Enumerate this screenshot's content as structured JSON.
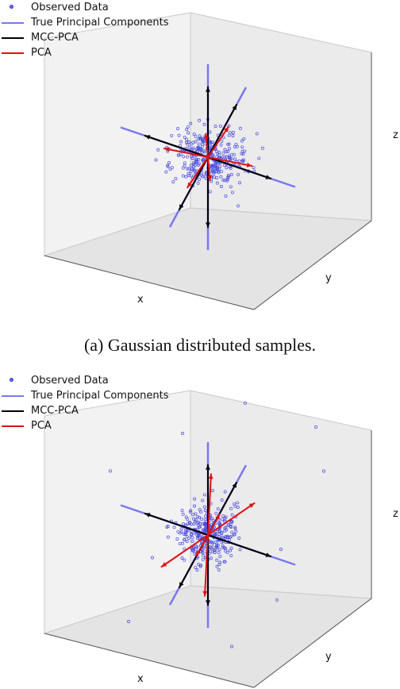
{
  "chart_data": [
    {
      "type": "scatter",
      "view": "3d",
      "caption": "(a) Gaussian distributed samples.",
      "xlabel": "x",
      "ylabel": "y",
      "zlabel": "z",
      "grid": false,
      "legend_placement": "top-left",
      "legend": [
        {
          "label": "Observed Data",
          "kind": "marker",
          "color": "#3333cc"
        },
        {
          "label": "True Principal Components",
          "kind": "line",
          "color": "#7878f0"
        },
        {
          "label": "MCC-PCA",
          "kind": "line",
          "color": "#000000"
        },
        {
          "label": "PCA",
          "kind": "line",
          "color": "#e01010"
        }
      ],
      "series": [
        {
          "name": "Observed Data",
          "cluster_spread": [
            3.0,
            2.0,
            1.0
          ],
          "outliers": []
        },
        {
          "name": "True Principal Components",
          "lines": [
            [
              -5,
              0,
              0,
              5,
              0,
              0
            ],
            [
              0,
              -4,
              0,
              0,
              4,
              0
            ],
            [
              0,
              0,
              -4.5,
              0,
              0,
              4.5
            ]
          ]
        },
        {
          "name": "MCC-PCA",
          "vectors": [
            [
              3.6,
              0,
              0
            ],
            [
              -3.6,
              0,
              0
            ],
            [
              0,
              3.0,
              0
            ],
            [
              0,
              -3.0,
              0
            ],
            [
              0,
              0,
              3.4
            ],
            [
              0,
              0,
              -3.4
            ]
          ]
        },
        {
          "name": "PCA",
          "vectors": [
            [
              2.4,
              0.2,
              0.1
            ],
            [
              -2.4,
              -0.2,
              -0.1
            ],
            [
              0.3,
              1.6,
              0.2
            ],
            [
              -0.3,
              -1.6,
              -0.2
            ],
            [
              0.1,
              -0.4,
              1.5
            ],
            [
              -0.1,
              0.4,
              -1.5
            ]
          ]
        }
      ]
    },
    {
      "type": "scatter",
      "view": "3d",
      "caption": "",
      "xlabel": "x",
      "ylabel": "y",
      "zlabel": "z",
      "grid": false,
      "legend_placement": "top-left",
      "legend": [
        {
          "label": "Observed Data",
          "kind": "marker",
          "color": "#3333cc"
        },
        {
          "label": "True Principal Components",
          "kind": "line",
          "color": "#7878f0"
        },
        {
          "label": "MCC-PCA",
          "kind": "line",
          "color": "#000000"
        },
        {
          "label": "PCA",
          "kind": "line",
          "color": "#e01010"
        }
      ],
      "series": [
        {
          "name": "Observed Data",
          "cluster_spread": [
            2.2,
            1.8,
            1.3
          ],
          "outliers": [
            [
              -4.5,
              -2,
              3.5
            ],
            [
              4,
              4,
              3
            ],
            [
              5,
              3,
              2
            ],
            [
              -2,
              1,
              3.5
            ],
            [
              3,
              -3,
              -2
            ],
            [
              -3,
              3,
              -3
            ],
            [
              1,
              -4,
              -4
            ],
            [
              -4,
              -1,
              -4.5
            ],
            [
              4.5,
              -1,
              -1
            ],
            [
              2,
              4,
              -3.5
            ],
            [
              -1,
              -4,
              2
            ],
            [
              0.5,
              3,
              4
            ]
          ]
        },
        {
          "name": "True Principal Components",
          "lines": [
            [
              -5,
              0,
              0,
              5,
              0,
              0
            ],
            [
              0,
              -4,
              0,
              0,
              4,
              0
            ],
            [
              0,
              0,
              -4.5,
              0,
              0,
              4.5
            ]
          ]
        },
        {
          "name": "MCC-PCA",
          "vectors": [
            [
              3.6,
              0,
              0
            ],
            [
              -3.6,
              0,
              0
            ],
            [
              0,
              3.0,
              0
            ],
            [
              0,
              -3.0,
              0
            ],
            [
              0,
              0,
              3.4
            ],
            [
              0,
              0,
              -3.4
            ]
          ]
        },
        {
          "name": "PCA",
          "vectors": [
            [
              2.0,
              1.2,
              1.1
            ],
            [
              -2.0,
              -1.2,
              -1.1
            ],
            [
              -0.8,
              1.8,
              1.2
            ],
            [
              0.8,
              -1.8,
              -1.2
            ],
            [
              1.0,
              -0.6,
              1.8
            ],
            [
              -1.0,
              0.6,
              -1.8
            ]
          ]
        }
      ]
    }
  ]
}
